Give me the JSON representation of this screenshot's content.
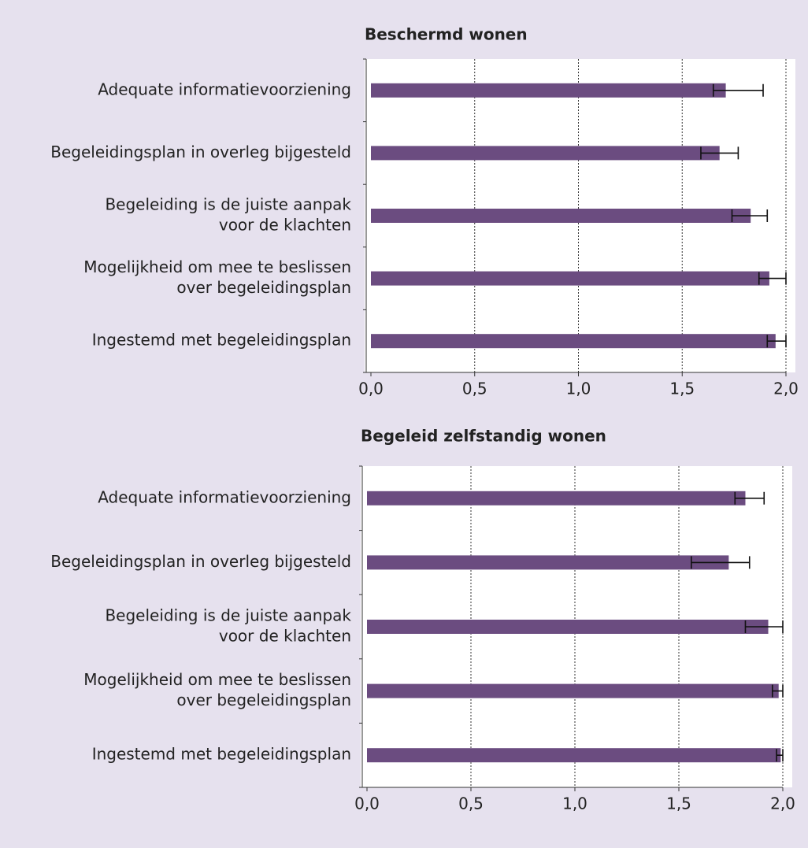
{
  "chart_data": [
    {
      "type": "bar",
      "orientation": "horizontal",
      "title": "Beschermd wonen",
      "categories": [
        [
          "Adequate informatievoorziening"
        ],
        [
          "Begeleidingsplan in overleg bijgesteld"
        ],
        [
          "Begeleiding is de juiste aanpak",
          "voor de klachten"
        ],
        [
          "Mogelijkheid om mee te beslissen",
          "over begeleidingsplan"
        ],
        [
          "Ingestemd met begeleidingsplan"
        ]
      ],
      "values": [
        1.71,
        1.68,
        1.83,
        1.92,
        1.95
      ],
      "err_low": [
        1.65,
        1.59,
        1.74,
        1.87,
        1.91
      ],
      "err_high": [
        1.89,
        1.77,
        1.91,
        2.0,
        2.0
      ],
      "color": "#6b4c80",
      "xlim": [
        0,
        2
      ],
      "xticks": [
        {
          "value": 0,
          "label": "0,0"
        },
        {
          "value": 0.5,
          "label": "0,5"
        },
        {
          "value": 1,
          "label": "1,0"
        },
        {
          "value": 1.5,
          "label": "1,5"
        },
        {
          "value": 2,
          "label": "2,0"
        }
      ],
      "grid": true
    },
    {
      "type": "bar",
      "orientation": "horizontal",
      "title": "Begeleid zelfstandig wonen",
      "categories": [
        [
          "Adequate informatievoorziening"
        ],
        [
          "Begeleidingsplan in overleg bijgesteld"
        ],
        [
          "Begeleiding is de juiste aanpak",
          "voor de klachten"
        ],
        [
          "Mogelijkheid om mee te beslissen",
          "over begeleidingsplan"
        ],
        [
          "Ingestemd met begeleidingsplan"
        ]
      ],
      "values": [
        1.82,
        1.74,
        1.93,
        1.98,
        1.99
      ],
      "err_low": [
        1.77,
        1.56,
        1.82,
        1.95,
        1.97
      ],
      "err_high": [
        1.91,
        1.84,
        2.0,
        2.0,
        2.0
      ],
      "color": "#6b4c80",
      "xlim": [
        0,
        2
      ],
      "xticks": [
        {
          "value": 0,
          "label": "0,0"
        },
        {
          "value": 0.5,
          "label": "0,5"
        },
        {
          "value": 1,
          "label": "1,0"
        },
        {
          "value": 1.5,
          "label": "1,5"
        },
        {
          "value": 2,
          "label": "2,0"
        }
      ],
      "grid": true
    }
  ]
}
